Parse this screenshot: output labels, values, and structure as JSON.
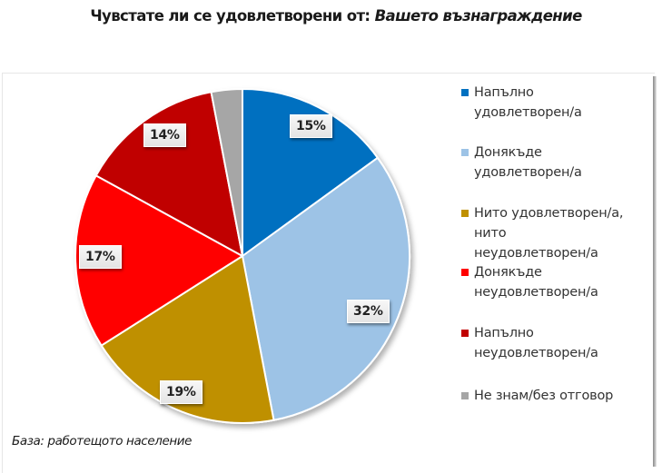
{
  "title": {
    "prefix": "Чувстате ли се удовлетворени от: ",
    "emphasis": "Вашето възнаграждение"
  },
  "footnote": "База: работещото население",
  "legend": [
    {
      "label": "Напълно\nудовлетворен/а",
      "color": "#0070C0"
    },
    {
      "label": "Донякъде\nудовлетворен/а",
      "color": "#9DC3E6"
    },
    {
      "label": "Нито удовлетворен/а,\nнито\nнеудовлетворен/а",
      "color": "#BF9000"
    },
    {
      "label": "Донякъде\nнеудовлетворен/а",
      "color": "#FF0000"
    },
    {
      "label": "Напълно\nнеудовлетворен/а",
      "color": "#C00000"
    },
    {
      "label": "Не знам/без отговор",
      "color": "#A6A6A6"
    }
  ],
  "slice_labels": [
    "15%",
    "32%",
    "19%",
    "17%",
    "14%"
  ],
  "chart_data": {
    "type": "pie",
    "title": "Чувстате ли се удовлетворени от: Вашето възнаграждение",
    "categories": [
      "Напълно удовлетворен/а",
      "Донякъде удовлетворен/а",
      "Нито удовлетворен/а, нито неудовлетворен/а",
      "Донякъде неудовлетворен/а",
      "Напълно неудовлетворен/а",
      "Не знам/без отговор"
    ],
    "values": [
      15,
      32,
      19,
      17,
      14,
      3
    ],
    "value_labels": [
      "15%",
      "32%",
      "19%",
      "17%",
      "14%",
      ""
    ],
    "colors": [
      "#0070C0",
      "#9DC3E6",
      "#BF9000",
      "#FF0000",
      "#C00000",
      "#A6A6A6"
    ],
    "start_angle": "12 o'clock, clockwise",
    "legend_position": "right",
    "note": "База: работещото население"
  }
}
